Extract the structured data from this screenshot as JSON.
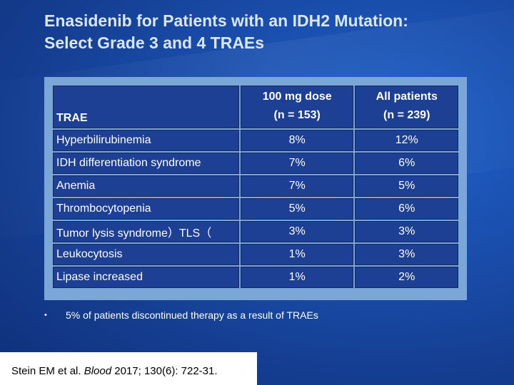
{
  "title": {
    "line1": "Enasidenib for Patients with an IDH2 Mutation:",
    "line2": "Select Grade 3 and 4 TRAEs"
  },
  "table": {
    "header": {
      "col1": "TRAE",
      "col2_line1": "100 mg dose",
      "col2_line2": "(n = 153)",
      "col3_line1": "All patients",
      "col3_line2": "(n = 239)"
    },
    "rows": [
      {
        "trae": "Hyperbilirubinemia",
        "dose100": "8%",
        "all": "12%"
      },
      {
        "trae": "IDH differentiation syndrome",
        "dose100": "7%",
        "all": "6%"
      },
      {
        "trae": "Anemia",
        "dose100": "7%",
        "all": "5%"
      },
      {
        "trae": "Thrombocytopenia",
        "dose100": "5%",
        "all": "6%"
      },
      {
        "trae": "Tumor lysis syndrome）TLS（",
        "dose100": "3%",
        "all": "3%"
      },
      {
        "trae": "Leukocytosis",
        "dose100": "1%",
        "all": "3%"
      },
      {
        "trae": "Lipase increased",
        "dose100": "1%",
        "all": "2%"
      }
    ]
  },
  "footnote": {
    "bullet": "•",
    "text": "5% of patients discontinued therapy as a result of TRAEs"
  },
  "citation": {
    "prefix": "Stein EM et al. ",
    "journal": "Blood",
    "suffix": " 2017; 130(6): 722-31."
  },
  "colors": {
    "background": "#1a4fae",
    "table_panel": "#7ba7d8",
    "cell": "#1d3f94",
    "title": "#d9e6f7"
  }
}
